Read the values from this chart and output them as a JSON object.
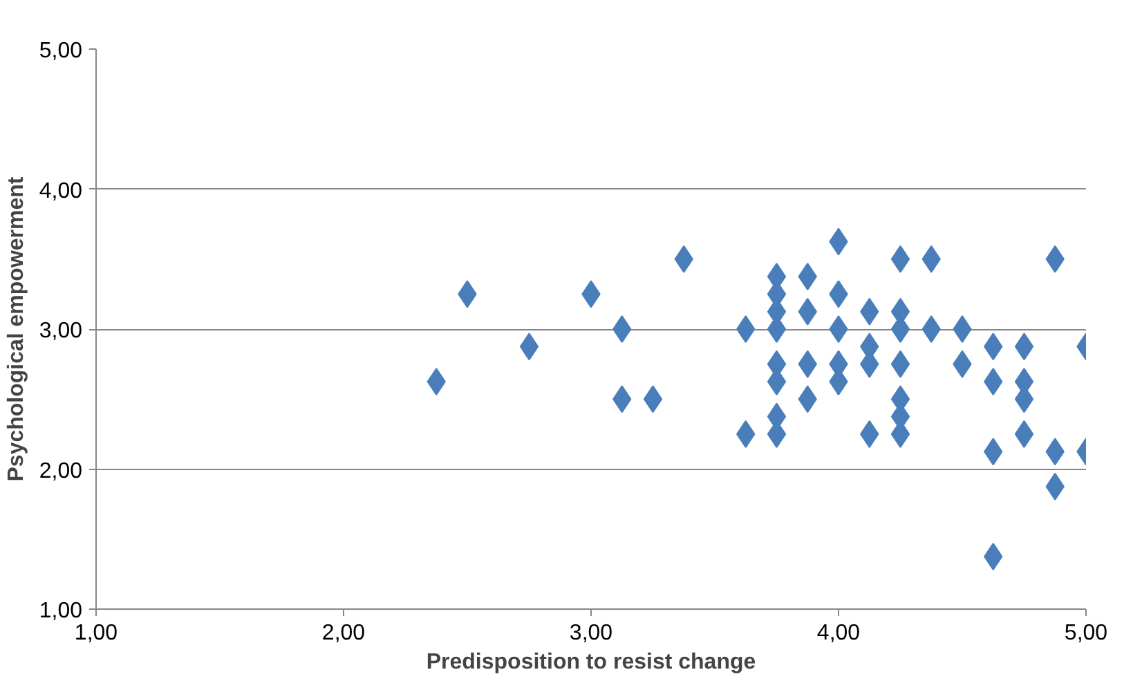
{
  "chart_data": {
    "type": "scatter",
    "xlabel": "Predisposition to resist change",
    "ylabel": "Psychological empowerment",
    "x": [
      2.375,
      2.5,
      2.75,
      3.0,
      3.125,
      3.125,
      3.25,
      3.375,
      3.625,
      3.625,
      3.75,
      3.75,
      3.75,
      3.75,
      3.75,
      3.75,
      3.75,
      3.75,
      3.875,
      3.875,
      3.875,
      3.875,
      4.0,
      4.0,
      4.0,
      4.0,
      4.0,
      4.125,
      4.125,
      4.125,
      4.125,
      4.25,
      4.25,
      4.25,
      4.25,
      4.25,
      4.25,
      4.25,
      4.375,
      4.375,
      4.5,
      4.5,
      4.625,
      4.625,
      4.625,
      4.625,
      4.75,
      4.75,
      4.75,
      4.75,
      4.875,
      4.875,
      4.875,
      5.0,
      5.0
    ],
    "series": [
      {
        "color": "#4a7ebb",
        "values": [
          2.625,
          3.25,
          2.875,
          3.25,
          3.0,
          2.5,
          2.5,
          3.5,
          3.0,
          2.25,
          3.375,
          3.25,
          3.125,
          3.0,
          2.75,
          2.625,
          2.375,
          2.25,
          3.375,
          3.125,
          2.75,
          2.5,
          3.625,
          3.25,
          3.0,
          2.75,
          2.625,
          3.125,
          2.875,
          2.75,
          2.25,
          3.5,
          3.125,
          3.0,
          2.75,
          2.5,
          2.375,
          2.25,
          3.5,
          3.0,
          3.0,
          2.75,
          2.875,
          2.625,
          2.125,
          1.375,
          2.875,
          2.625,
          2.5,
          2.25,
          3.5,
          2.125,
          1.875,
          2.875,
          2.125
        ]
      }
    ],
    "marker": "diamond",
    "grid": "y",
    "xlim": [
      1,
      5
    ],
    "ylim": [
      1,
      5
    ],
    "xticks": [
      {
        "value": 1,
        "label": "1,00"
      },
      {
        "value": 2,
        "label": "2,00"
      },
      {
        "value": 3,
        "label": "3,00"
      },
      {
        "value": 4,
        "label": "4,00"
      },
      {
        "value": 5,
        "label": "5,00"
      }
    ],
    "yticks": [
      {
        "value": 1,
        "label": "1,00"
      },
      {
        "value": 2,
        "label": "2,00"
      },
      {
        "value": 3,
        "label": "3,00"
      },
      {
        "value": 4,
        "label": "4,00"
      },
      {
        "value": 5,
        "label": "5,00"
      }
    ]
  }
}
